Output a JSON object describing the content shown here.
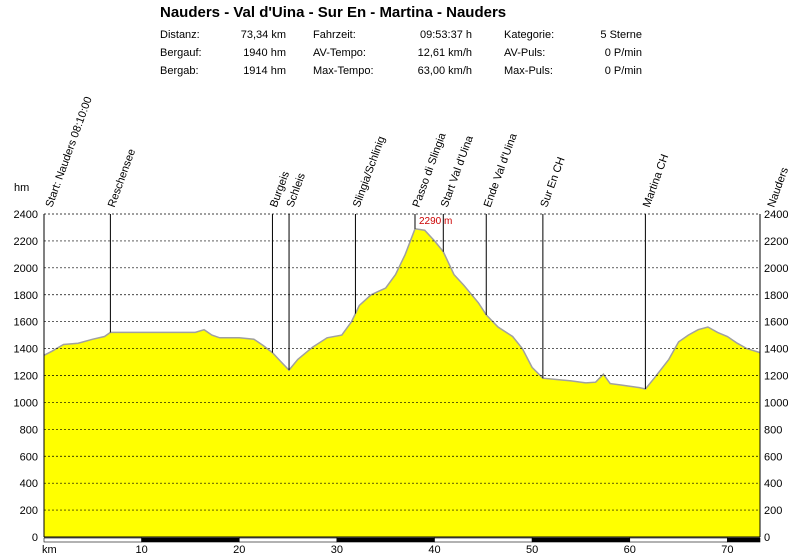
{
  "header": {
    "title": "Nauders - Val d'Uina - Sur En - Martina - Nauders",
    "stats": {
      "distance_label": "Distanz:",
      "distance_value": "73,34 km",
      "climb_label": "Bergauf:",
      "climb_value": "1940 hm",
      "descent_label": "Bergab:",
      "descent_value": "1914 hm",
      "ridetime_label": "Fahrzeit:",
      "ridetime_value": "09:53:37 h",
      "avgspeed_label": "AV-Tempo:",
      "avgspeed_value": "12,61 km/h",
      "maxspeed_label": "Max-Tempo:",
      "maxspeed_value": "63,00 km/h",
      "category_label": "Kategorie:",
      "category_value": "5 Sterne",
      "avgpulse_label": "AV-Puls:",
      "avgpulse_value": "0 P/min",
      "maxpulse_label": "Max-Puls:",
      "maxpulse_value": "0 P/min"
    }
  },
  "chart_data": {
    "type": "area",
    "ylabel": "hm",
    "xlabel": "km",
    "xlim": [
      0,
      73.34
    ],
    "ylim": [
      0,
      2400
    ],
    "y_ticks": [
      0,
      200,
      400,
      600,
      800,
      1000,
      1200,
      1400,
      1600,
      1800,
      2000,
      2200,
      2400
    ],
    "x_ticks": [
      10,
      20,
      30,
      40,
      50,
      60,
      70
    ],
    "grid": true,
    "colors": {
      "fill": "#ffff00",
      "profile_line": "#a0a0a0",
      "peak_label": "#cc0000"
    },
    "peak_annotation": {
      "x": 38.0,
      "y": 2290,
      "label": "2290 m"
    },
    "markers": [
      {
        "x": 0.0,
        "label": "Start: Nauders 08:10:00"
      },
      {
        "x": 6.8,
        "label": "Reschensee"
      },
      {
        "x": 23.4,
        "label": "Burgeis"
      },
      {
        "x": 25.1,
        "label": "Schleis"
      },
      {
        "x": 31.9,
        "label": "Slingia/Schlinig"
      },
      {
        "x": 38.0,
        "label": "Passo di Slingia"
      },
      {
        "x": 40.9,
        "label": "Start Val d'Uina"
      },
      {
        "x": 45.3,
        "label": "Ende Val d'Uina"
      },
      {
        "x": 51.1,
        "label": "Sur En CH"
      },
      {
        "x": 61.6,
        "label": "Martina CH"
      },
      {
        "x": 73.3,
        "label": "Nauders"
      }
    ],
    "profile": {
      "x": [
        0,
        0.8,
        2.0,
        3.5,
        5.0,
        6.2,
        6.8,
        8.0,
        10.0,
        12.0,
        14.0,
        15.5,
        16.4,
        17.2,
        18.0,
        20.0,
        21.5,
        22.5,
        23.4,
        24.3,
        25.1,
        26.0,
        27.5,
        29.0,
        30.5,
        31.5,
        32.3,
        33.5,
        35.0,
        36.0,
        37.0,
        38.0,
        39.0,
        40.0,
        40.9,
        42.0,
        43.0,
        44.5,
        45.3,
        46.5,
        48.0,
        49.0,
        50.0,
        51.1,
        52.5,
        54.0,
        55.5,
        56.5,
        57.3,
        58.0,
        59.0,
        60.0,
        61.0,
        61.6,
        62.5,
        64.0,
        65.0,
        66.0,
        67.0,
        68.0,
        69.0,
        70.0,
        71.0,
        72.0,
        73.34
      ],
      "y": [
        1350,
        1380,
        1430,
        1440,
        1470,
        1490,
        1520,
        1520,
        1520,
        1520,
        1520,
        1520,
        1540,
        1500,
        1480,
        1480,
        1470,
        1420,
        1370,
        1300,
        1240,
        1320,
        1410,
        1480,
        1500,
        1600,
        1720,
        1800,
        1850,
        1950,
        2100,
        2290,
        2280,
        2200,
        2120,
        1950,
        1870,
        1740,
        1650,
        1560,
        1490,
        1400,
        1260,
        1180,
        1170,
        1160,
        1145,
        1150,
        1210,
        1140,
        1130,
        1120,
        1110,
        1100,
        1180,
        1320,
        1450,
        1500,
        1540,
        1560,
        1520,
        1490,
        1440,
        1400,
        1370
      ]
    }
  }
}
